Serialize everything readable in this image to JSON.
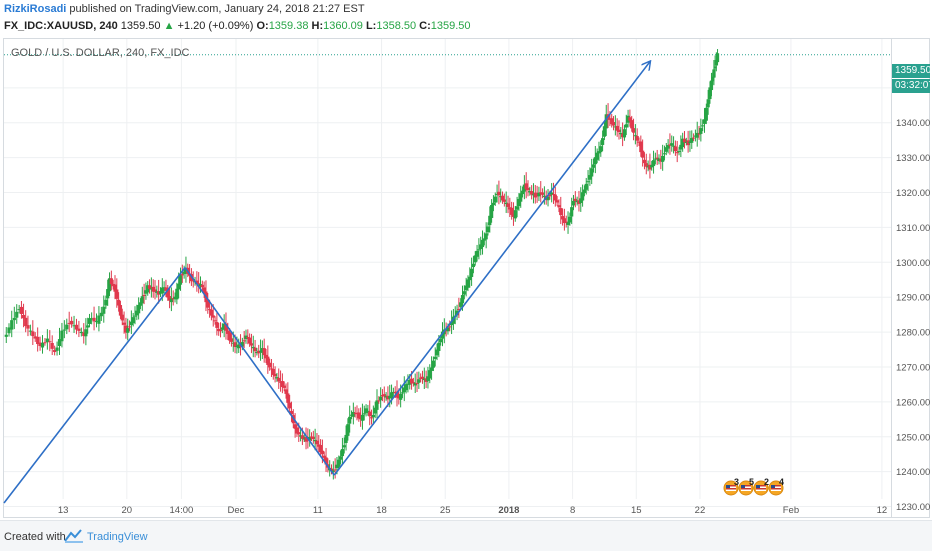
{
  "header": {
    "author": "RizkiRosadi",
    "published_text": " published on TradingView.com, January 24, 2018 21:27 EST"
  },
  "quote": {
    "symbol": "FX_IDC:XAUUSD, 240",
    "last": "1359.50",
    "change": "+1.20 (+0.09%)",
    "o_label": "O:",
    "o": "1359.38",
    "h_label": "H:",
    "h": "1360.09",
    "l_label": "L:",
    "l": "1358.50",
    "c_label": "C:",
    "c": "1359.50"
  },
  "chart_title": "GOLD / U.S. DOLLAR, 240, FX_IDC",
  "price_tags": {
    "last": "1359.50",
    "countdown": "03:32:07"
  },
  "footer": {
    "created": "Created with",
    "brand": "TradingView"
  },
  "events": [
    "3",
    "5",
    "2",
    "4"
  ],
  "colors": {
    "up": "#26a445",
    "down": "#e0384d",
    "line": "#2e6fc6",
    "grid": "#eef0f2",
    "price_line": "#2aa18f"
  },
  "chart_data": {
    "type": "candlestick",
    "title": "GOLD / U.S. DOLLAR, 240, FX_IDC",
    "ylim": [
      1227,
      1364
    ],
    "yticks": [
      1230,
      1240,
      1250,
      1260,
      1270,
      1280,
      1290,
      1300,
      1310,
      1320,
      1330,
      1340,
      1350
    ],
    "xticks": [
      {
        "label": "13",
        "x": 13
      },
      {
        "label": "20",
        "x": 20
      },
      {
        "label": "14:00",
        "x": 26
      },
      {
        "label": "Dec",
        "x": 32
      },
      {
        "label": "11",
        "x": 41
      },
      {
        "label": "18",
        "x": 48
      },
      {
        "label": "25",
        "x": 55
      },
      {
        "label": "2018",
        "x": 62
      },
      {
        "label": "8",
        "x": 69
      },
      {
        "label": "15",
        "x": 76
      },
      {
        "label": "22",
        "x": 83
      },
      {
        "label": "Feb",
        "x": 93
      },
      {
        "label": "12",
        "x": 103
      }
    ],
    "xlim": [
      6.5,
      104
    ],
    "price_path": [
      [
        6.6,
        1278
      ],
      [
        7.5,
        1283
      ],
      [
        8.3,
        1287
      ],
      [
        9.0,
        1282
      ],
      [
        9.8,
        1279
      ],
      [
        10.6,
        1276
      ],
      [
        11.4,
        1278
      ],
      [
        12.2,
        1274
      ],
      [
        13.0,
        1280
      ],
      [
        13.8,
        1283
      ],
      [
        14.6,
        1281
      ],
      [
        15.4,
        1279
      ],
      [
        16.0,
        1284
      ],
      [
        16.8,
        1283
      ],
      [
        17.6,
        1287
      ],
      [
        18.2,
        1295
      ],
      [
        18.8,
        1292
      ],
      [
        19.4,
        1285
      ],
      [
        20.0,
        1280
      ],
      [
        20.6,
        1283
      ],
      [
        21.2,
        1286
      ],
      [
        21.8,
        1290
      ],
      [
        22.4,
        1293
      ],
      [
        23.0,
        1292
      ],
      [
        23.6,
        1291
      ],
      [
        24.2,
        1293
      ],
      [
        24.8,
        1289
      ],
      [
        25.4,
        1290
      ],
      [
        26.0,
        1296
      ],
      [
        26.6,
        1298
      ],
      [
        27.2,
        1295
      ],
      [
        27.8,
        1294
      ],
      [
        28.4,
        1293
      ],
      [
        29.0,
        1287
      ],
      [
        29.6,
        1284
      ],
      [
        30.2,
        1280
      ],
      [
        30.8,
        1282
      ],
      [
        31.4,
        1278
      ],
      [
        32.0,
        1276
      ],
      [
        32.6,
        1276
      ],
      [
        33.2,
        1279
      ],
      [
        33.8,
        1276
      ],
      [
        34.4,
        1274
      ],
      [
        35.0,
        1275
      ],
      [
        35.6,
        1271
      ],
      [
        36.2,
        1268
      ],
      [
        36.8,
        1266
      ],
      [
        37.4,
        1264
      ],
      [
        38.0,
        1258
      ],
      [
        38.6,
        1252
      ],
      [
        39.2,
        1250
      ],
      [
        39.8,
        1249
      ],
      [
        40.4,
        1250
      ],
      [
        41.0,
        1248
      ],
      [
        41.6,
        1245
      ],
      [
        42.2,
        1241
      ],
      [
        42.8,
        1240
      ],
      [
        43.4,
        1243
      ],
      [
        44.0,
        1248
      ],
      [
        44.6,
        1256
      ],
      [
        45.2,
        1257
      ],
      [
        45.8,
        1255
      ],
      [
        46.4,
        1258
      ],
      [
        47.0,
        1255
      ],
      [
        47.6,
        1260
      ],
      [
        48.2,
        1262
      ],
      [
        48.8,
        1261
      ],
      [
        49.4,
        1263
      ],
      [
        50.0,
        1261
      ],
      [
        50.6,
        1264
      ],
      [
        51.2,
        1266
      ],
      [
        51.8,
        1265
      ],
      [
        52.4,
        1267
      ],
      [
        53.0,
        1266
      ],
      [
        53.6,
        1270
      ],
      [
        54.2,
        1275
      ],
      [
        54.8,
        1280
      ],
      [
        55.4,
        1281
      ],
      [
        56.0,
        1284
      ],
      [
        56.6,
        1287
      ],
      [
        57.2,
        1292
      ],
      [
        57.8,
        1296
      ],
      [
        58.4,
        1302
      ],
      [
        59.0,
        1305
      ],
      [
        59.6,
        1308
      ],
      [
        60.2,
        1316
      ],
      [
        60.8,
        1320
      ],
      [
        61.4,
        1318
      ],
      [
        62.0,
        1316
      ],
      [
        62.6,
        1313
      ],
      [
        63.2,
        1318
      ],
      [
        63.8,
        1322
      ],
      [
        64.4,
        1320
      ],
      [
        65.0,
        1319
      ],
      [
        65.6,
        1320
      ],
      [
        66.2,
        1318
      ],
      [
        66.8,
        1320
      ],
      [
        67.4,
        1317
      ],
      [
        68.0,
        1312
      ],
      [
        68.6,
        1311
      ],
      [
        69.2,
        1318
      ],
      [
        69.8,
        1317
      ],
      [
        70.4,
        1321
      ],
      [
        71.0,
        1325
      ],
      [
        71.6,
        1330
      ],
      [
        72.2,
        1333
      ],
      [
        72.8,
        1342
      ],
      [
        73.4,
        1340
      ],
      [
        74.0,
        1338
      ],
      [
        74.6,
        1336
      ],
      [
        75.2,
        1342
      ],
      [
        75.8,
        1337
      ],
      [
        76.4,
        1334
      ],
      [
        77.0,
        1328
      ],
      [
        77.6,
        1327
      ],
      [
        78.2,
        1330
      ],
      [
        78.8,
        1329
      ],
      [
        79.4,
        1333
      ],
      [
        80.0,
        1334
      ],
      [
        80.6,
        1331
      ],
      [
        81.2,
        1335
      ],
      [
        81.8,
        1334
      ],
      [
        82.4,
        1336
      ],
      [
        83.0,
        1337
      ],
      [
        83.6,
        1341
      ],
      [
        84.2,
        1350
      ],
      [
        84.6,
        1355
      ],
      [
        85.0,
        1359.5
      ]
    ],
    "trend_lines": [
      {
        "from": [
          6.5,
          1231
        ],
        "to": [
          26.4,
          1298.5
        ],
        "arrow": false
      },
      {
        "from": [
          26.4,
          1298.5
        ],
        "to": [
          42.8,
          1239
        ],
        "arrow": false
      },
      {
        "from": [
          42.8,
          1239
        ],
        "to": [
          77.5,
          1357.5
        ],
        "arrow": true
      }
    ]
  }
}
